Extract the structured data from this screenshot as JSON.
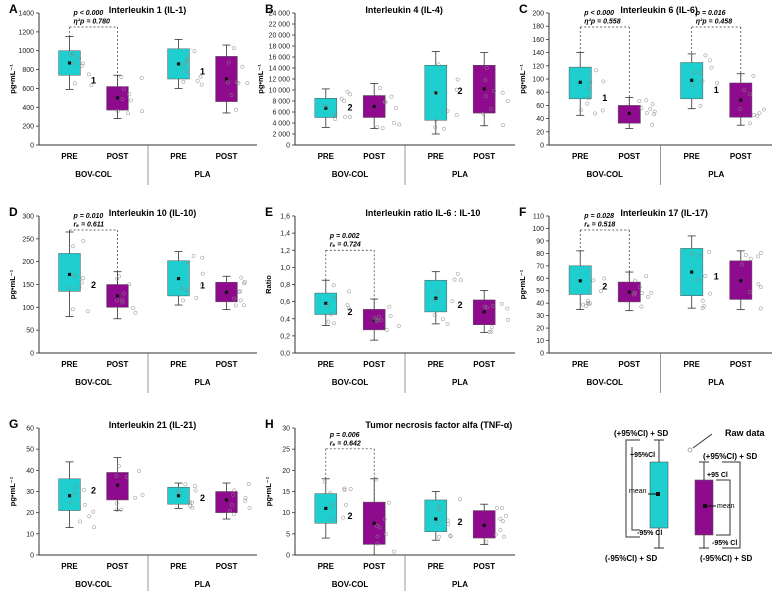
{
  "colors": {
    "pre": "#1fcfcf",
    "post": "#8e0b8e",
    "axis": "#333333",
    "raw": "#888888"
  },
  "chart_data": [
    {
      "letter": "A",
      "title": "Interleukin 1 (IL-1)",
      "type": "box",
      "ylabel": "pg•mL⁻¹",
      "ylim": [
        0,
        1400
      ],
      "yticks": [
        0,
        200,
        400,
        600,
        800,
        1000,
        1200,
        1400
      ],
      "tick_labels": [
        "0",
        "200",
        "400",
        "600",
        "800",
        "1000",
        "1200",
        "1400"
      ],
      "groups": [
        {
          "name": "BOV-COL",
          "note": "1",
          "boxes": [
            {
              "label": "PRE",
              "kind": "pre",
              "mean": 870,
              "q1": 740,
              "q3": 1000,
              "wlow": 590,
              "whigh": 1150
            },
            {
              "label": "POST",
              "kind": "post",
              "mean": 500,
              "q1": 370,
              "q3": 620,
              "wlow": 280,
              "whigh": 740
            }
          ]
        },
        {
          "name": "PLA",
          "note": "1",
          "boxes": [
            {
              "label": "PRE",
              "kind": "pre",
              "mean": 860,
              "q1": 700,
              "q3": 1020,
              "wlow": 600,
              "whigh": 1120
            },
            {
              "label": "POST",
              "kind": "post",
              "mean": 700,
              "q1": 460,
              "q3": 940,
              "wlow": 340,
              "whigh": 1060
            }
          ]
        }
      ],
      "annotations": [
        {
          "group": 0,
          "lines": [
            "p < 0.000",
            "η²p = 0.780"
          ]
        }
      ]
    },
    {
      "letter": "B",
      "title": "Interleukin 4 (IL-4)",
      "type": "box",
      "ylabel": "pg•mL⁻¹",
      "ylim": [
        0,
        24000
      ],
      "yticks": [
        0,
        2000,
        4000,
        6000,
        8000,
        10000,
        12000,
        14000,
        16000,
        18000,
        20000,
        22000,
        24000
      ],
      "tick_labels": [
        "0",
        "2 000",
        "4 000",
        "6 000",
        "8 000",
        "10 000",
        "12 000",
        "14 000",
        "16 000",
        "18 000",
        "20 000",
        "22 000",
        "24 000"
      ],
      "groups": [
        {
          "name": "BOV-COL",
          "note": "2",
          "boxes": [
            {
              "label": "PRE",
              "kind": "pre",
              "mean": 6700,
              "q1": 5000,
              "q3": 8500,
              "wlow": 3200,
              "whigh": 10200
            },
            {
              "label": "POST",
              "kind": "post",
              "mean": 7000,
              "q1": 5000,
              "q3": 9000,
              "wlow": 3000,
              "whigh": 11200
            }
          ]
        },
        {
          "name": "PLA",
          "note": "2",
          "boxes": [
            {
              "label": "PRE",
              "kind": "pre",
              "mean": 9500,
              "q1": 4500,
              "q3": 14500,
              "wlow": 2000,
              "whigh": 17000
            },
            {
              "label": "POST",
              "kind": "post",
              "mean": 10200,
              "q1": 5800,
              "q3": 14500,
              "wlow": 3500,
              "whigh": 16800
            }
          ]
        }
      ],
      "annotations": []
    },
    {
      "letter": "C",
      "title": "Interleukin 6 (IL-6)",
      "type": "box",
      "ylabel": "pg•mL⁻¹",
      "ylim": [
        0,
        200
      ],
      "yticks": [
        0,
        20,
        40,
        60,
        80,
        100,
        120,
        140,
        160,
        180,
        200
      ],
      "tick_labels": [
        "0",
        "20",
        "40",
        "60",
        "80",
        "100",
        "120",
        "140",
        "160",
        "180",
        "200"
      ],
      "groups": [
        {
          "name": "BOV-COL",
          "note": "1",
          "boxes": [
            {
              "label": "PRE",
              "kind": "pre",
              "mean": 95,
              "q1": 70,
              "q3": 118,
              "wlow": 45,
              "whigh": 140
            },
            {
              "label": "POST",
              "kind": "post",
              "mean": 48,
              "q1": 33,
              "q3": 60,
              "wlow": 25,
              "whigh": 72
            }
          ]
        },
        {
          "name": "PLA",
          "note": "1",
          "boxes": [
            {
              "label": "PRE",
              "kind": "pre",
              "mean": 98,
              "q1": 70,
              "q3": 125,
              "wlow": 55,
              "whigh": 138
            },
            {
              "label": "POST",
              "kind": "post",
              "mean": 68,
              "q1": 42,
              "q3": 94,
              "wlow": 30,
              "whigh": 108
            }
          ]
        }
      ],
      "annotations": [
        {
          "group": 0,
          "lines": [
            "p < 0.000",
            "η²p = 0.558"
          ]
        },
        {
          "group": 1,
          "lines": [
            "p = 0.016",
            "η²p = 0.458"
          ]
        }
      ]
    },
    {
      "letter": "D",
      "title": "Interleukin 10 (IL-10)",
      "type": "box",
      "ylabel": "pg•mL⁻¹",
      "ylim": [
        0,
        300
      ],
      "yticks": [
        0,
        50,
        100,
        150,
        200,
        250,
        300
      ],
      "tick_labels": [
        "0",
        "50",
        "100",
        "150",
        "200",
        "250",
        "300"
      ],
      "groups": [
        {
          "name": "BOV-COL",
          "note": "2",
          "boxes": [
            {
              "label": "PRE",
              "kind": "pre",
              "mean": 172,
              "q1": 135,
              "q3": 218,
              "wlow": 80,
              "whigh": 265
            },
            {
              "label": "POST",
              "kind": "post",
              "mean": 125,
              "q1": 100,
              "q3": 150,
              "wlow": 75,
              "whigh": 178
            }
          ]
        },
        {
          "name": "PLA",
          "note": "1",
          "boxes": [
            {
              "label": "PRE",
              "kind": "pre",
              "mean": 163,
              "q1": 125,
              "q3": 202,
              "wlow": 105,
              "whigh": 222
            },
            {
              "label": "POST",
              "kind": "post",
              "mean": 133,
              "q1": 112,
              "q3": 155,
              "wlow": 95,
              "whigh": 168
            }
          ]
        }
      ],
      "annotations": [
        {
          "group": 0,
          "lines": [
            "p = 0.010",
            "rₑ = 0.611"
          ]
        }
      ]
    },
    {
      "letter": "E",
      "title": "Interleukin ratio IL-6 : IL-10",
      "type": "box",
      "ylabel": "Ratio",
      "ylim": [
        0,
        1.6
      ],
      "yticks": [
        0,
        0.2,
        0.4,
        0.6,
        0.8,
        1.0,
        1.2,
        1.4,
        1.6
      ],
      "tick_labels": [
        "0,0",
        "0,2",
        "0,4",
        "0,6",
        "0,8",
        "1,0",
        "1,2",
        "1,4",
        "1,6"
      ],
      "groups": [
        {
          "name": "BOV-COL",
          "note": "2",
          "boxes": [
            {
              "label": "PRE",
              "kind": "pre",
              "mean": 0.58,
              "q1": 0.45,
              "q3": 0.7,
              "wlow": 0.32,
              "whigh": 0.85
            },
            {
              "label": "POST",
              "kind": "post",
              "mean": 0.38,
              "q1": 0.27,
              "q3": 0.51,
              "wlow": 0.15,
              "whigh": 0.63
            }
          ]
        },
        {
          "name": "PLA",
          "note": "2",
          "boxes": [
            {
              "label": "PRE",
              "kind": "pre",
              "mean": 0.64,
              "q1": 0.48,
              "q3": 0.85,
              "wlow": 0.34,
              "whigh": 0.95
            },
            {
              "label": "POST",
              "kind": "post",
              "mean": 0.48,
              "q1": 0.33,
              "q3": 0.62,
              "wlow": 0.24,
              "whigh": 0.73
            }
          ]
        }
      ],
      "annotations": [
        {
          "group": 0,
          "lines": [
            "p = 0.002",
            "rₑ = 0.724"
          ]
        }
      ]
    },
    {
      "letter": "F",
      "title": "Interleukin 17 (IL-17)",
      "type": "box",
      "ylabel": "pg•mL⁻¹",
      "ylim": [
        0,
        110
      ],
      "yticks": [
        0,
        10,
        20,
        30,
        40,
        50,
        60,
        70,
        80,
        90,
        100,
        110
      ],
      "tick_labels": [
        "0",
        "10",
        "20",
        "30",
        "40",
        "50",
        "60",
        "70",
        "80",
        "90",
        "100",
        "110"
      ],
      "groups": [
        {
          "name": "BOV-COL",
          "note": "2",
          "boxes": [
            {
              "label": "PRE",
              "kind": "pre",
              "mean": 58,
              "q1": 47,
              "q3": 70,
              "wlow": 35,
              "whigh": 82
            },
            {
              "label": "POST",
              "kind": "post",
              "mean": 49,
              "q1": 41,
              "q3": 57,
              "wlow": 34,
              "whigh": 65
            }
          ]
        },
        {
          "name": "PLA",
          "note": "1",
          "boxes": [
            {
              "label": "PRE",
              "kind": "pre",
              "mean": 65,
              "q1": 46,
              "q3": 84,
              "wlow": 36,
              "whigh": 94
            },
            {
              "label": "POST",
              "kind": "post",
              "mean": 58,
              "q1": 43,
              "q3": 74,
              "wlow": 35,
              "whigh": 82
            }
          ]
        }
      ],
      "annotations": [
        {
          "group": 0,
          "lines": [
            "p = 0.028",
            "rₑ = 0.518"
          ]
        }
      ]
    },
    {
      "letter": "G",
      "title": "Interleukin 21 (IL-21)",
      "type": "box",
      "ylabel": "pg•mL⁻¹",
      "ylim": [
        0,
        60
      ],
      "yticks": [
        0,
        10,
        20,
        30,
        40,
        50,
        60
      ],
      "tick_labels": [
        "0",
        "10",
        "20",
        "30",
        "40",
        "50",
        "60"
      ],
      "groups": [
        {
          "name": "BOV-COL",
          "note": "2",
          "boxes": [
            {
              "label": "PRE",
              "kind": "pre",
              "mean": 28,
              "q1": 21,
              "q3": 36,
              "wlow": 13,
              "whigh": 44
            },
            {
              "label": "POST",
              "kind": "post",
              "mean": 33,
              "q1": 26,
              "q3": 39,
              "wlow": 21,
              "whigh": 46
            }
          ]
        },
        {
          "name": "PLA",
          "note": "2",
          "boxes": [
            {
              "label": "PRE",
              "kind": "pre",
              "mean": 28,
              "q1": 24,
              "q3": 32,
              "wlow": 22,
              "whigh": 34
            },
            {
              "label": "POST",
              "kind": "post",
              "mean": 26,
              "q1": 20,
              "q3": 30,
              "wlow": 17,
              "whigh": 34
            }
          ]
        }
      ],
      "annotations": []
    },
    {
      "letter": "H",
      "title": "Tumor necrosis factor alfa (TNF-α)",
      "type": "box",
      "ylabel": "pg•mL⁻¹",
      "ylim": [
        0,
        30
      ],
      "yticks": [
        0,
        5,
        10,
        15,
        20,
        25,
        30
      ],
      "tick_labels": [
        "0",
        "5",
        "10",
        "15",
        "20",
        "25",
        "30"
      ],
      "groups": [
        {
          "name": "BOV-COL",
          "note": "2",
          "boxes": [
            {
              "label": "PRE",
              "kind": "pre",
              "mean": 11,
              "q1": 7.5,
              "q3": 14.5,
              "wlow": 4,
              "whigh": 18
            },
            {
              "label": "POST",
              "kind": "post",
              "mean": 7.5,
              "q1": 2.5,
              "q3": 12.5,
              "wlow": 0,
              "whigh": 18
            }
          ]
        },
        {
          "name": "PLA",
          "note": "2",
          "boxes": [
            {
              "label": "PRE",
              "kind": "pre",
              "mean": 8.5,
              "q1": 5.5,
              "q3": 13,
              "wlow": 3.5,
              "whigh": 15
            },
            {
              "label": "POST",
              "kind": "post",
              "mean": 7,
              "q1": 4,
              "q3": 10.5,
              "wlow": 2.5,
              "whigh": 12
            }
          ]
        }
      ],
      "annotations": [
        {
          "group": 0,
          "lines": [
            "p = 0.006",
            "rₑ = 0.642"
          ]
        }
      ]
    }
  ],
  "legend": {
    "raw_data": "Raw data",
    "plus_sd_top": "(+95%Cl) + SD",
    "plus_sd_right": "(+95%Cl) + SD",
    "plus_ci_left": "+95%Cl",
    "plus_ci_right": "+95 Cl",
    "mean_left": "mean",
    "mean_right": "mean",
    "minus_ci_left": "-95% Cl",
    "minus_ci_right": "-95% Cl",
    "minus_sd_left": "(-95%Cl) + SD",
    "minus_sd_right": "(-95%Cl) + SD"
  }
}
